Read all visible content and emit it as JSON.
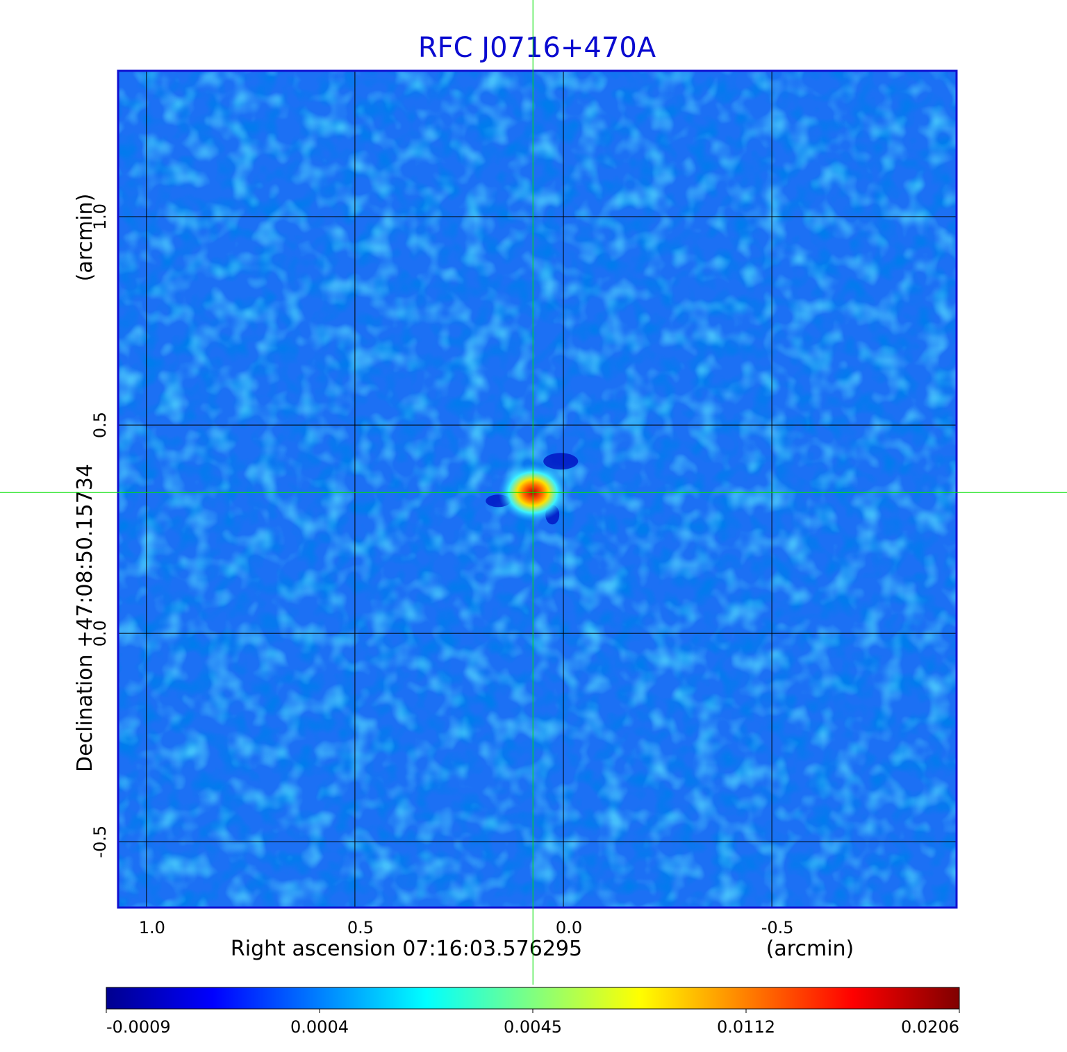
{
  "chart_data": {
    "type": "image",
    "title": "RFC J0716+470A",
    "x_label": "Right ascension  07:16:03.576295",
    "x_unit": "(arcmin)",
    "y_label": "Declination  +47:08:50.15734",
    "y_unit": "(arcmin)",
    "xlim": [
      1.068,
      -0.943
    ],
    "ylim": [
      -0.658,
      1.35
    ],
    "xticks": [
      {
        "value": 1.0,
        "label": "1.0"
      },
      {
        "value": 0.5,
        "label": "0.5"
      },
      {
        "value": 0,
        "label": "0.0"
      },
      {
        "value": -0.5,
        "label": "-0.5"
      }
    ],
    "yticks": [
      {
        "value": -0.5,
        "label": "-0.5"
      },
      {
        "value": 0,
        "label": "0.0"
      },
      {
        "value": 0.5,
        "label": "0.5"
      },
      {
        "value": 1.0,
        "label": "1.0"
      }
    ],
    "grid": true,
    "crosshair": {
      "x": 0.073,
      "y": 0.338,
      "color": "#00e000"
    },
    "colorbar": {
      "ticks": [
        -0.0009,
        0.0004,
        0.0045,
        0.0112,
        0.0206
      ],
      "colors": [
        "#00008f",
        "#0000ff",
        "#0080ff",
        "#00ffff",
        "#80ff80",
        "#ffff00",
        "#ff8000",
        "#ff0000",
        "#800000"
      ]
    }
  }
}
